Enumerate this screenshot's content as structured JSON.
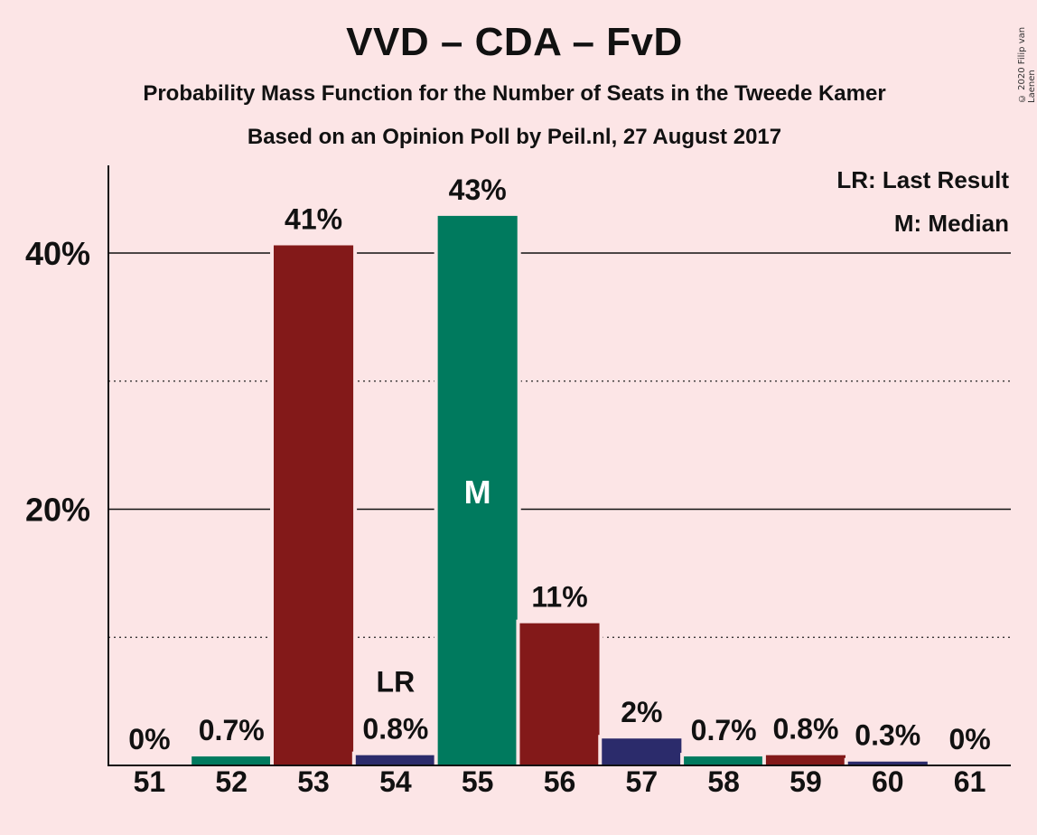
{
  "title": "VVD – CDA – FvD",
  "subtitle1": "Probability Mass Function for the Number of Seats in the Tweede Kamer",
  "subtitle2": "Based on an Opinion Poll by Peil.nl, 27 August 2017",
  "copyright": "© 2020 Filip van Laenen",
  "legend": {
    "last_result": "LR: Last Result",
    "median": "M: Median"
  },
  "colors": {
    "background": "#FCE5E6",
    "red": "#831919",
    "green": "#007A5E",
    "navy": "#2B2B6B"
  },
  "chart_data": {
    "type": "bar",
    "categories": [
      "51",
      "52",
      "53",
      "54",
      "55",
      "56",
      "57",
      "58",
      "59",
      "60",
      "61"
    ],
    "values": [
      0,
      0.7,
      40.6,
      0.8,
      42.9,
      11.1,
      2.1,
      0.7,
      0.8,
      0.3,
      0
    ],
    "value_labels": [
      "0%",
      "0.7%",
      "41%",
      "0.8%",
      "43%",
      "11%",
      "2%",
      "0.7%",
      "0.8%",
      "0.3%",
      "0%"
    ],
    "bar_colors": [
      "green",
      "green",
      "red",
      "navy",
      "green",
      "red",
      "navy",
      "green",
      "red",
      "navy",
      "green"
    ],
    "markers": {
      "54": "LR",
      "55": "M"
    },
    "ylim": [
      0,
      47
    ],
    "yticks": [
      {
        "value": 20,
        "label": "20%"
      },
      {
        "value": 40,
        "label": "40%"
      }
    ],
    "minor_gridlines": [
      10,
      30
    ],
    "grid": true,
    "legend_position": "top-right"
  }
}
